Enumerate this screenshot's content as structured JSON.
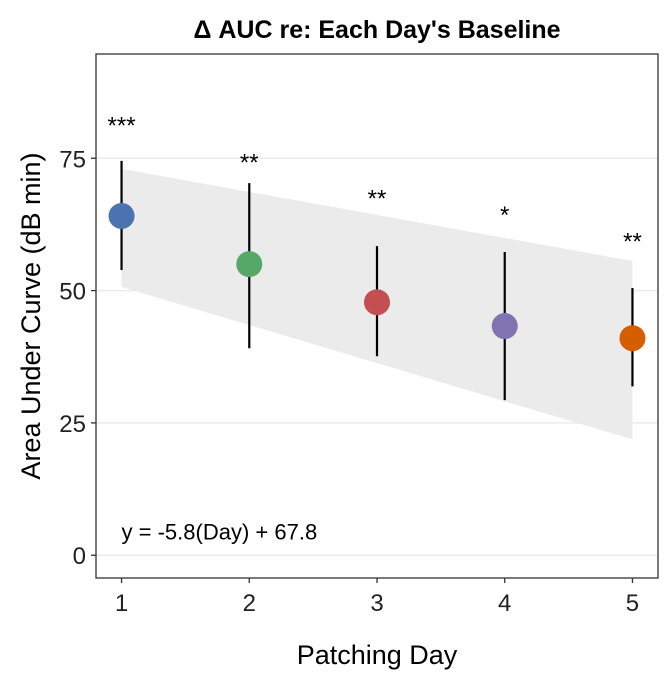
{
  "chart_data": {
    "type": "scatter",
    "title": "Δ AUC re: Each Day's Baseline",
    "xlabel": "Patching Day",
    "ylabel": "Area Under Curve (dB min)",
    "xlim": [
      0.8,
      5.2
    ],
    "ylim": [
      -4.3,
      94.7
    ],
    "x_ticks": [
      1,
      2,
      3,
      4,
      5
    ],
    "y_ticks": [
      0,
      25,
      50,
      75
    ],
    "grid": "horizontal major lines",
    "legend": "none",
    "points": [
      {
        "x": 1,
        "y": 64.1,
        "err_low": 53.9,
        "err_high": 74.5,
        "signif": "***",
        "signif_y": 81.9,
        "color": "#4C72B0"
      },
      {
        "x": 2,
        "y": 55.0,
        "err_low": 39.1,
        "err_high": 70.3,
        "signif": "**",
        "signif_y": 75.0,
        "color": "#55A868"
      },
      {
        "x": 3,
        "y": 47.8,
        "err_low": 37.6,
        "err_high": 58.4,
        "signif": "**",
        "signif_y": 68.2,
        "color": "#C44E52"
      },
      {
        "x": 4,
        "y": 43.3,
        "err_low": 29.3,
        "err_high": 57.3,
        "signif": "*",
        "signif_y": 65.0,
        "color": "#8172B2"
      },
      {
        "x": 5,
        "y": 41.0,
        "err_low": 31.9,
        "err_high": 50.5,
        "signif": "**",
        "signif_y": 60.0,
        "color": "#D55E00"
      }
    ],
    "confidence_band": {
      "x": [
        1,
        5
      ],
      "lower": [
        50.7,
        21.9
      ],
      "upper": [
        73.0,
        55.6
      ],
      "color": "#EBEBEB"
    },
    "annotation": "y = -5.8(Day) + 67.8",
    "annotation_pos": {
      "x": 1.0,
      "y": 4.5
    }
  }
}
